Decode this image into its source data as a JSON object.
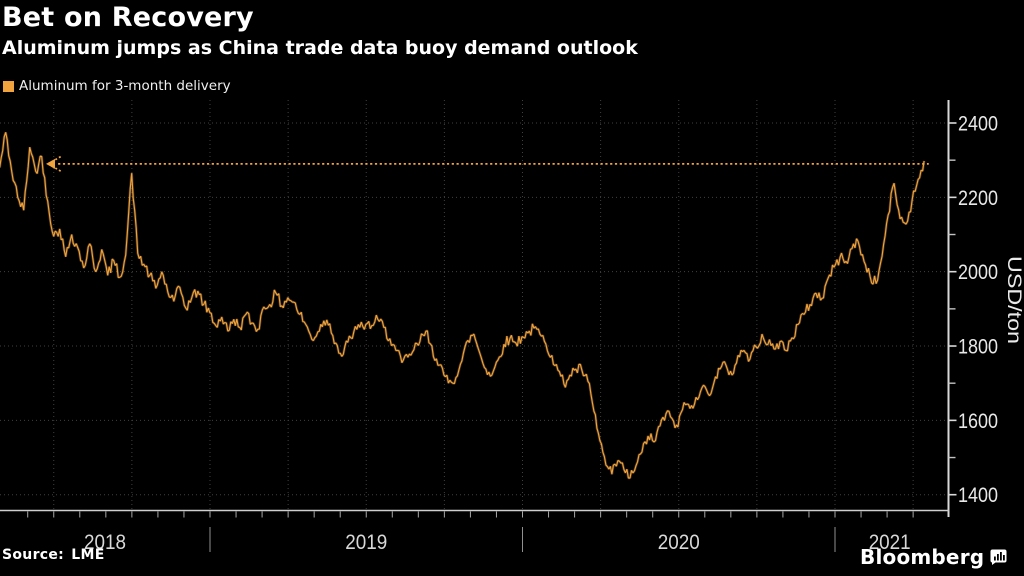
{
  "header": {
    "title": "Bet on Recovery",
    "subtitle": "Aluminum jumps as China trade data buoy demand outlook"
  },
  "legend": {
    "label": "Aluminum for 3-month delivery",
    "swatch_color": "#f1a43e"
  },
  "footer": {
    "source": "Source: LME",
    "brand": "Bloomberg",
    "brand_icon": "bar-chart-bubble-icon"
  },
  "axis": {
    "y_unit": "USD/ton",
    "y_ticks": [
      2400,
      2200,
      2000,
      1800,
      1600,
      1400
    ],
    "y_minor_ticks": [
      2300,
      2100,
      1900,
      1700,
      1500
    ],
    "years": [
      {
        "label": "2018",
        "center": 2018.664
      },
      {
        "label": "2019",
        "center": 2019.5
      },
      {
        "label": "2020",
        "center": 2020.5
      },
      {
        "label": "2021",
        "center": 2021.175
      }
    ],
    "year_separators": [
      2019,
      2020,
      2021
    ]
  },
  "chart_data": {
    "type": "line",
    "title": "Bet on Recovery",
    "subtitle": "Aluminum jumps as China trade data buoy demand outlook",
    "xlabel": "",
    "ylabel": "USD/ton",
    "ylim": [
      1400,
      2400
    ],
    "x_years": [
      "2018",
      "2019",
      "2020",
      "2021"
    ],
    "x_range_years": [
      2018.33,
      2021.29
    ],
    "grid": "dotted",
    "legend_position": "top-left",
    "background": "#000000",
    "grid_color": "#404040",
    "axis_color": "#d0d0d0",
    "reference_line": {
      "value": 2290,
      "style": "dotted",
      "color": "#f2a43f",
      "arrow": "left",
      "t_start": 2018.514,
      "t_end": 2021.3
    },
    "series": [
      {
        "name": "Aluminum for 3-month delivery",
        "color": "#f2a13b",
        "unit": "USD/ton",
        "sampling": "weekly",
        "t_start": 2018.327,
        "t_step": 0.019208,
        "values": [
          2280,
          2375,
          2270,
          2200,
          2165,
          2335,
          2270,
          2310,
          2190,
          2095,
          2115,
          2040,
          2100,
          2065,
          2010,
          2075,
          2000,
          2060,
          1990,
          2030,
          1985,
          2045,
          2265,
          2050,
          2020,
          1990,
          1955,
          2000,
          1945,
          1920,
          1958,
          1902,
          1930,
          1948,
          1912,
          1890,
          1855,
          1878,
          1840,
          1872,
          1850,
          1885,
          1862,
          1845,
          1905,
          1912,
          1943,
          1908,
          1930,
          1918,
          1885,
          1858,
          1818,
          1838,
          1868,
          1860,
          1808,
          1772,
          1810,
          1838,
          1850,
          1858,
          1855,
          1872,
          1850,
          1820,
          1788,
          1755,
          1770,
          1790,
          1812,
          1840,
          1800,
          1748,
          1722,
          1708,
          1715,
          1760,
          1815,
          1832,
          1780,
          1738,
          1722,
          1762,
          1805,
          1820,
          1808,
          1825,
          1835,
          1848,
          1832,
          1805,
          1775,
          1735,
          1698,
          1722,
          1738,
          1735,
          1705,
          1625,
          1545,
          1480,
          1455,
          1492,
          1468,
          1445,
          1478,
          1515,
          1558,
          1542,
          1585,
          1618,
          1605,
          1582,
          1648,
          1632,
          1662,
          1688,
          1672,
          1702,
          1738,
          1748,
          1722,
          1775,
          1788,
          1765,
          1798,
          1832,
          1805,
          1792,
          1812,
          1788,
          1822,
          1858,
          1885,
          1912,
          1942,
          1928,
          1982,
          2012,
          2038,
          2028,
          2062,
          2082,
          2028,
          1988,
          1968,
          2042,
          2152,
          2238,
          2142,
          2128,
          2192,
          2248,
          2298
        ]
      }
    ]
  }
}
